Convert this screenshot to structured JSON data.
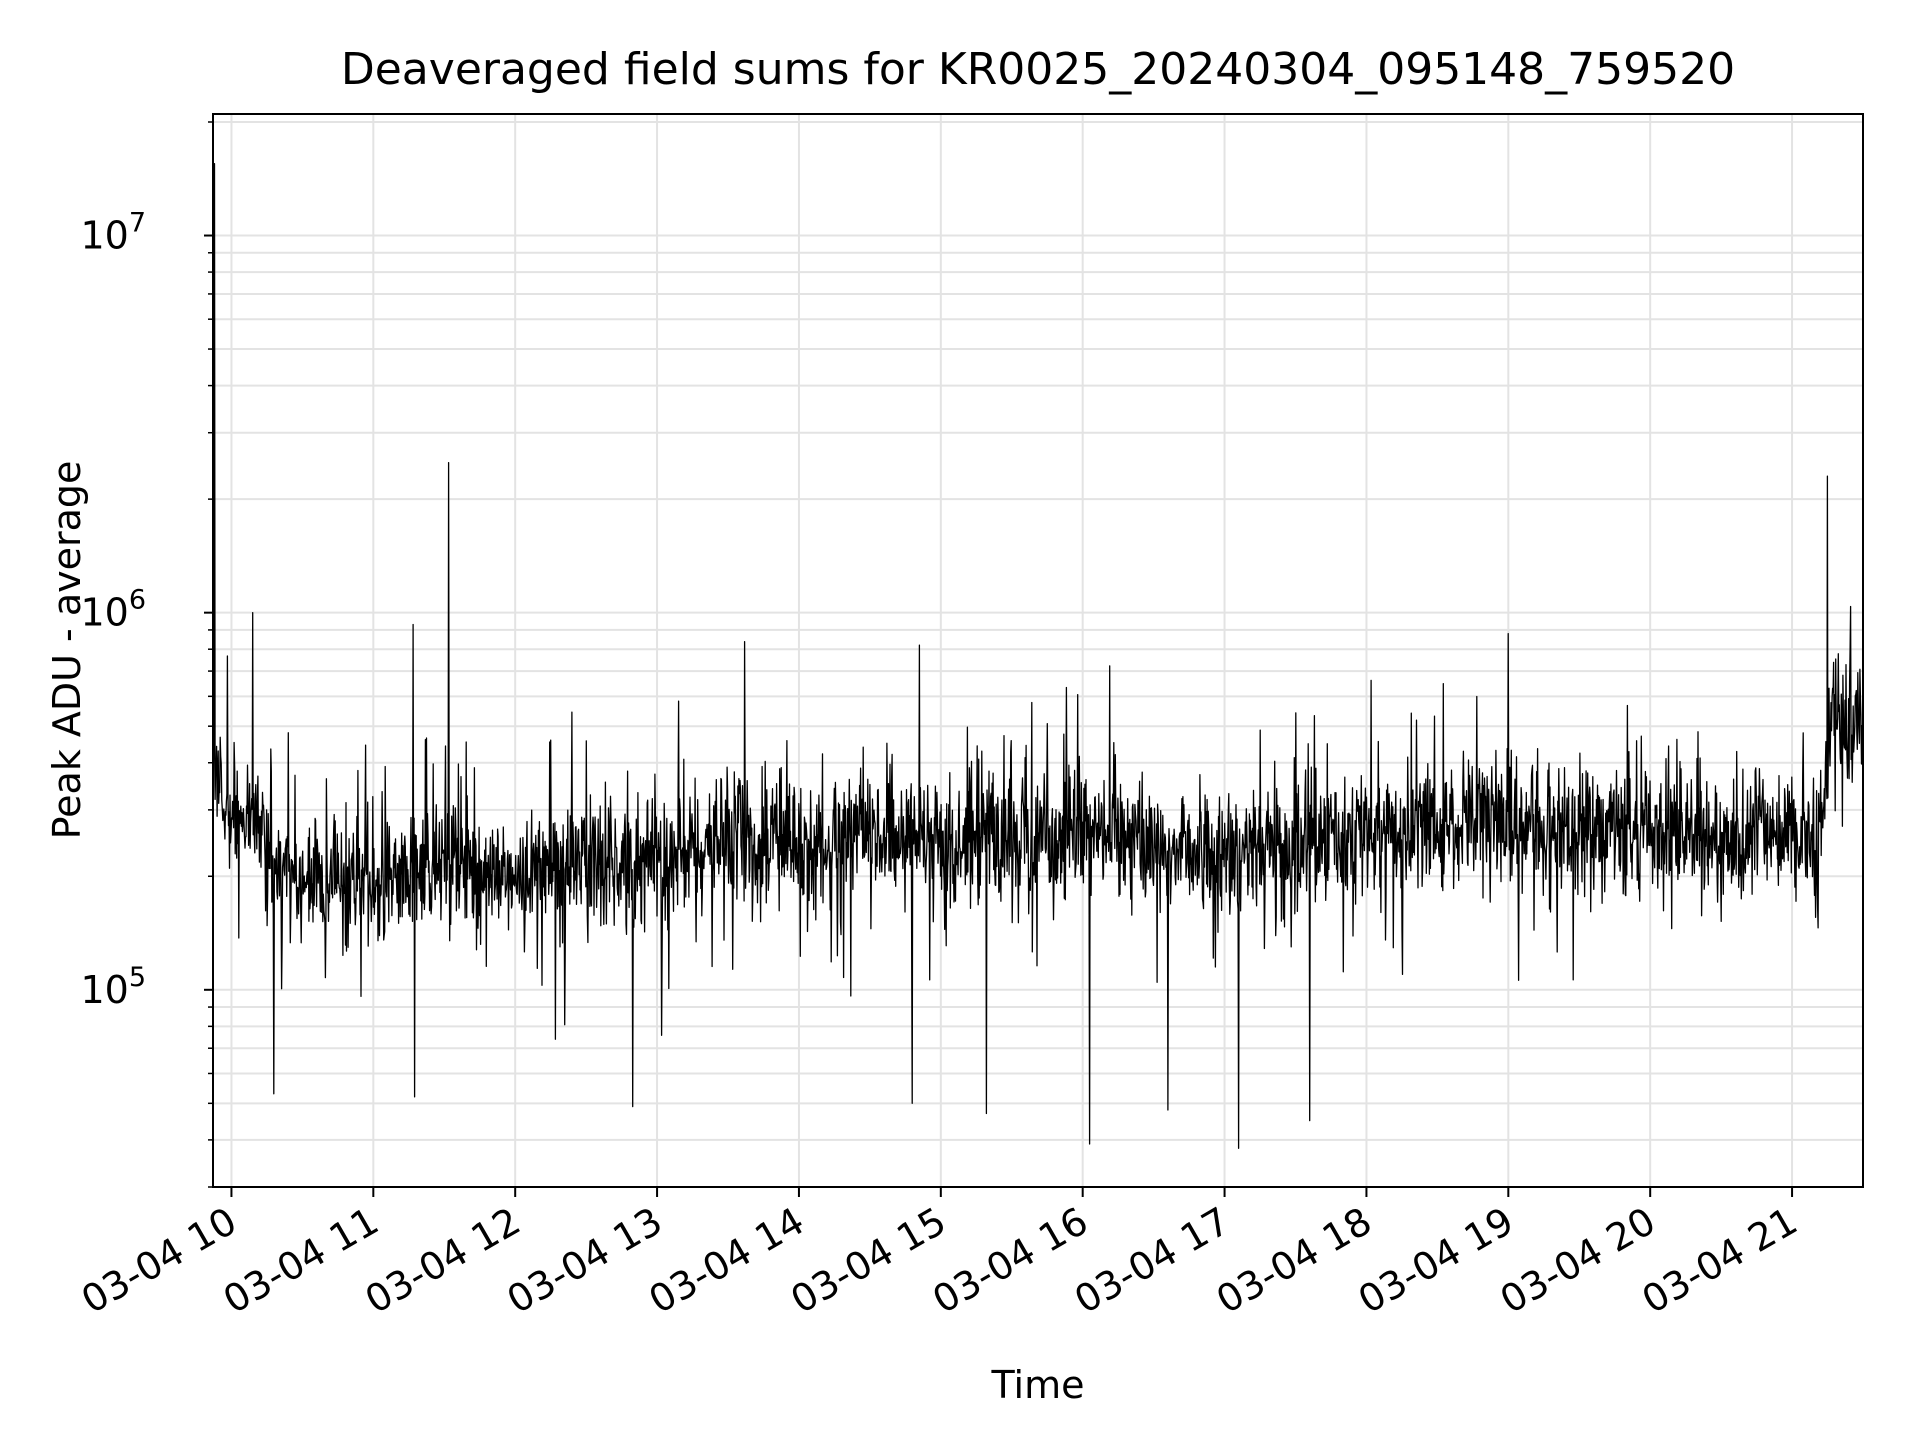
{
  "chart_data": {
    "type": "line",
    "title": "Deaveraged field sums for KR0025_20240304_095148_759520",
    "xlabel": "Time",
    "ylabel": "Peak ADU - average",
    "x_ticks": [
      "03-04 10",
      "03-04 11",
      "03-04 12",
      "03-04 13",
      "03-04 14",
      "03-04 15",
      "03-04 16",
      "03-04 17",
      "03-04 18",
      "03-04 19",
      "03-04 20",
      "03-04 21"
    ],
    "x_tick_hours": [
      10,
      11,
      12,
      13,
      14,
      15,
      16,
      17,
      18,
      19,
      20,
      21
    ],
    "xlim_hours": [
      9.87,
      21.5
    ],
    "y_scale": "log",
    "ylim": [
      30000,
      21000000
    ],
    "y_major_ticks": [
      100000,
      1000000,
      10000000
    ],
    "y_tick_exponents": [
      "5",
      "6",
      "7"
    ],
    "grid": true,
    "line_color": "#000000",
    "grid_color": "#e3e3e3",
    "series": [
      {
        "name": "",
        "note_on_values": "dense noisy trace (thousands of samples); baseline level per hour and notable peaks/dips listed below",
        "baseline": [
          {
            "hour": 9.87,
            "value": 330000
          },
          {
            "hour": 10.0,
            "value": 300000
          },
          {
            "hour": 10.5,
            "value": 200000
          },
          {
            "hour": 11.0,
            "value": 195000
          },
          {
            "hour": 11.5,
            "value": 215000
          },
          {
            "hour": 12.0,
            "value": 200000
          },
          {
            "hour": 12.5,
            "value": 225000
          },
          {
            "hour": 13.0,
            "value": 220000
          },
          {
            "hour": 13.5,
            "value": 245000
          },
          {
            "hour": 14.0,
            "value": 240000
          },
          {
            "hour": 14.5,
            "value": 255000
          },
          {
            "hour": 15.0,
            "value": 250000
          },
          {
            "hour": 15.5,
            "value": 265000
          },
          {
            "hour": 16.0,
            "value": 255000
          },
          {
            "hour": 16.5,
            "value": 250000
          },
          {
            "hour": 17.0,
            "value": 230000
          },
          {
            "hour": 17.5,
            "value": 240000
          },
          {
            "hour": 18.0,
            "value": 265000
          },
          {
            "hour": 18.5,
            "value": 275000
          },
          {
            "hour": 19.0,
            "value": 280000
          },
          {
            "hour": 19.5,
            "value": 265000
          },
          {
            "hour": 20.0,
            "value": 260000
          },
          {
            "hour": 20.5,
            "value": 255000
          },
          {
            "hour": 21.0,
            "value": 260000
          },
          {
            "hour": 21.2,
            "value": 240000
          },
          {
            "hour": 21.25,
            "value": 500000
          },
          {
            "hour": 21.5,
            "value": 550000
          }
        ],
        "peaks": [
          {
            "hour": 9.88,
            "value": 15500000
          },
          {
            "hour": 10.15,
            "value": 1000000
          },
          {
            "hour": 11.28,
            "value": 930000
          },
          {
            "hour": 11.53,
            "value": 2500000
          },
          {
            "hour": 14.85,
            "value": 820000
          },
          {
            "hour": 19.0,
            "value": 880000
          },
          {
            "hour": 21.25,
            "value": 2300000
          }
        ],
        "dips": [
          {
            "hour": 10.3,
            "value": 53000
          },
          {
            "hour": 11.29,
            "value": 52000
          },
          {
            "hour": 12.83,
            "value": 49000
          },
          {
            "hour": 14.8,
            "value": 50000
          },
          {
            "hour": 15.32,
            "value": 47000
          },
          {
            "hour": 16.05,
            "value": 39000
          },
          {
            "hour": 16.6,
            "value": 48000
          },
          {
            "hour": 17.1,
            "value": 38000
          },
          {
            "hour": 17.6,
            "value": 45000
          }
        ]
      }
    ]
  }
}
